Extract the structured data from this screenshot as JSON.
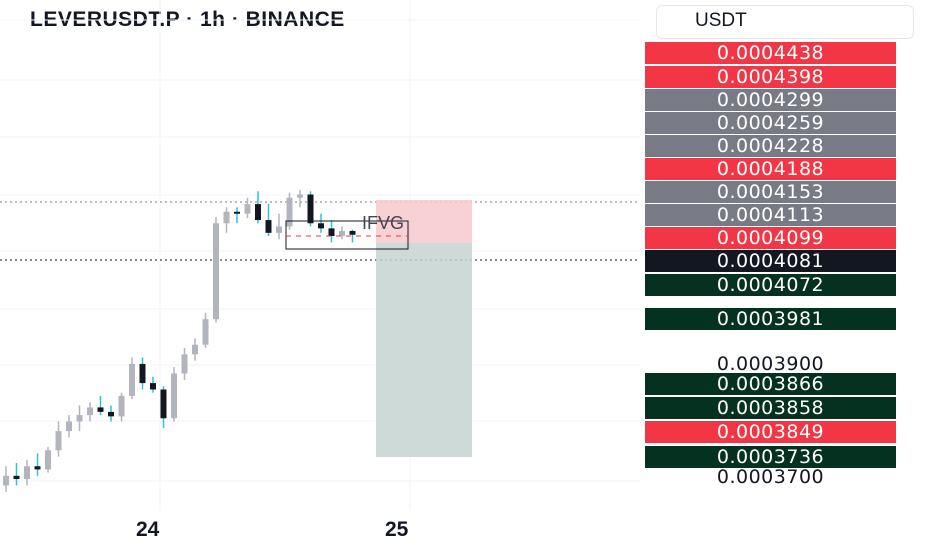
{
  "header": {
    "title": "LEVERUSDT.P · 1h · BINANCE",
    "currency": "USDT"
  },
  "chart_data": {
    "type": "candlestick",
    "x_ticks": [
      "24",
      "25"
    ],
    "annotation": "IFVG",
    "price_tags": [
      {
        "value": "0.0004438",
        "bg": "#f23645"
      },
      {
        "value": "0.0004398",
        "bg": "#f23645"
      },
      {
        "value": "0.0004299",
        "bg": "#787b86"
      },
      {
        "value": "0.0004259",
        "bg": "#787b86"
      },
      {
        "value": "0.0004228",
        "bg": "#787b86"
      },
      {
        "value": "0.0004188",
        "bg": "#f23645"
      },
      {
        "value": "0.0004153",
        "bg": "#787b86"
      },
      {
        "value": "0.0004113",
        "bg": "#787b86"
      },
      {
        "value": "0.0004099",
        "bg": "#f23645"
      },
      {
        "value": "0.0004081",
        "bg": "#131722"
      },
      {
        "value": "0.0004072",
        "bg": "#053121"
      },
      {
        "value": "0.0003981",
        "bg": "#053121"
      },
      {
        "value": "0.0003900",
        "bg": ""
      },
      {
        "value": "0.0003866",
        "bg": "#053121"
      },
      {
        "value": "0.0003858",
        "bg": "#053121"
      },
      {
        "value": "0.0003849",
        "bg": "#f23645"
      },
      {
        "value": "0.0003736",
        "bg": "#053121"
      },
      {
        "value": "0.0003700",
        "bg": ""
      }
    ],
    "candles": [
      {
        "o": 0.000369,
        "h": 0.000372,
        "l": 0.000368,
        "c": 0.0003705
      },
      {
        "o": 0.0003705,
        "h": 0.0003725,
        "l": 0.000369,
        "c": 0.00037
      },
      {
        "o": 0.00037,
        "h": 0.000373,
        "l": 0.000369,
        "c": 0.000372
      },
      {
        "o": 0.000372,
        "h": 0.000374,
        "l": 0.0003705,
        "c": 0.0003715
      },
      {
        "o": 0.0003715,
        "h": 0.000375,
        "l": 0.000371,
        "c": 0.0003745
      },
      {
        "o": 0.0003745,
        "h": 0.000379,
        "l": 0.0003735,
        "c": 0.0003775
      },
      {
        "o": 0.0003775,
        "h": 0.00038,
        "l": 0.0003765,
        "c": 0.000379
      },
      {
        "o": 0.000379,
        "h": 0.0003815,
        "l": 0.0003775,
        "c": 0.00038
      },
      {
        "o": 0.00038,
        "h": 0.000382,
        "l": 0.000379,
        "c": 0.0003812
      },
      {
        "o": 0.0003812,
        "h": 0.000383,
        "l": 0.00038,
        "c": 0.0003805
      },
      {
        "o": 0.0003805,
        "h": 0.0003815,
        "l": 0.000379,
        "c": 0.0003798
      },
      {
        "o": 0.0003798,
        "h": 0.0003835,
        "l": 0.000379,
        "c": 0.000383
      },
      {
        "o": 0.000383,
        "h": 0.000389,
        "l": 0.0003825,
        "c": 0.000388
      },
      {
        "o": 0.000388,
        "h": 0.000389,
        "l": 0.000384,
        "c": 0.000385
      },
      {
        "o": 0.000385,
        "h": 0.000386,
        "l": 0.0003835,
        "c": 0.000384
      },
      {
        "o": 0.000384,
        "h": 0.0003845,
        "l": 0.000378,
        "c": 0.0003795
      },
      {
        "o": 0.0003795,
        "h": 0.0003875,
        "l": 0.000379,
        "c": 0.0003865
      },
      {
        "o": 0.0003865,
        "h": 0.0003905,
        "l": 0.0003855,
        "c": 0.0003895
      },
      {
        "o": 0.0003895,
        "h": 0.000392,
        "l": 0.0003885,
        "c": 0.000391
      },
      {
        "o": 0.000391,
        "h": 0.000396,
        "l": 0.0003905,
        "c": 0.000395
      },
      {
        "o": 0.000395,
        "h": 0.000411,
        "l": 0.0003945,
        "c": 0.00041
      },
      {
        "o": 0.00041,
        "h": 0.0004125,
        "l": 0.0004085,
        "c": 0.0004118
      },
      {
        "o": 0.0004118,
        "h": 0.0004125,
        "l": 0.00041,
        "c": 0.0004115
      },
      {
        "o": 0.0004115,
        "h": 0.000414,
        "l": 0.0004108,
        "c": 0.000413
      },
      {
        "o": 0.000413,
        "h": 0.000415,
        "l": 0.00041,
        "c": 0.0004105
      },
      {
        "o": 0.0004105,
        "h": 0.000413,
        "l": 0.000408,
        "c": 0.0004085
      },
      {
        "o": 0.0004085,
        "h": 0.0004115,
        "l": 0.0004075,
        "c": 0.0004095
      },
      {
        "o": 0.0004095,
        "h": 0.0004148,
        "l": 0.000409,
        "c": 0.000414
      },
      {
        "o": 0.000414,
        "h": 0.0004152,
        "l": 0.0004125,
        "c": 0.0004145
      },
      {
        "o": 0.0004145,
        "h": 0.000415,
        "l": 0.0004095,
        "c": 0.00041
      },
      {
        "o": 0.00041,
        "h": 0.0004115,
        "l": 0.0004085,
        "c": 0.0004092
      },
      {
        "o": 0.0004092,
        "h": 0.0004105,
        "l": 0.000407,
        "c": 0.000408
      },
      {
        "o": 0.000408,
        "h": 0.0004095,
        "l": 0.0004075,
        "c": 0.0004088
      },
      {
        "o": 0.0004088,
        "h": 0.000409,
        "l": 0.000407,
        "c": 0.0004082
      }
    ]
  }
}
